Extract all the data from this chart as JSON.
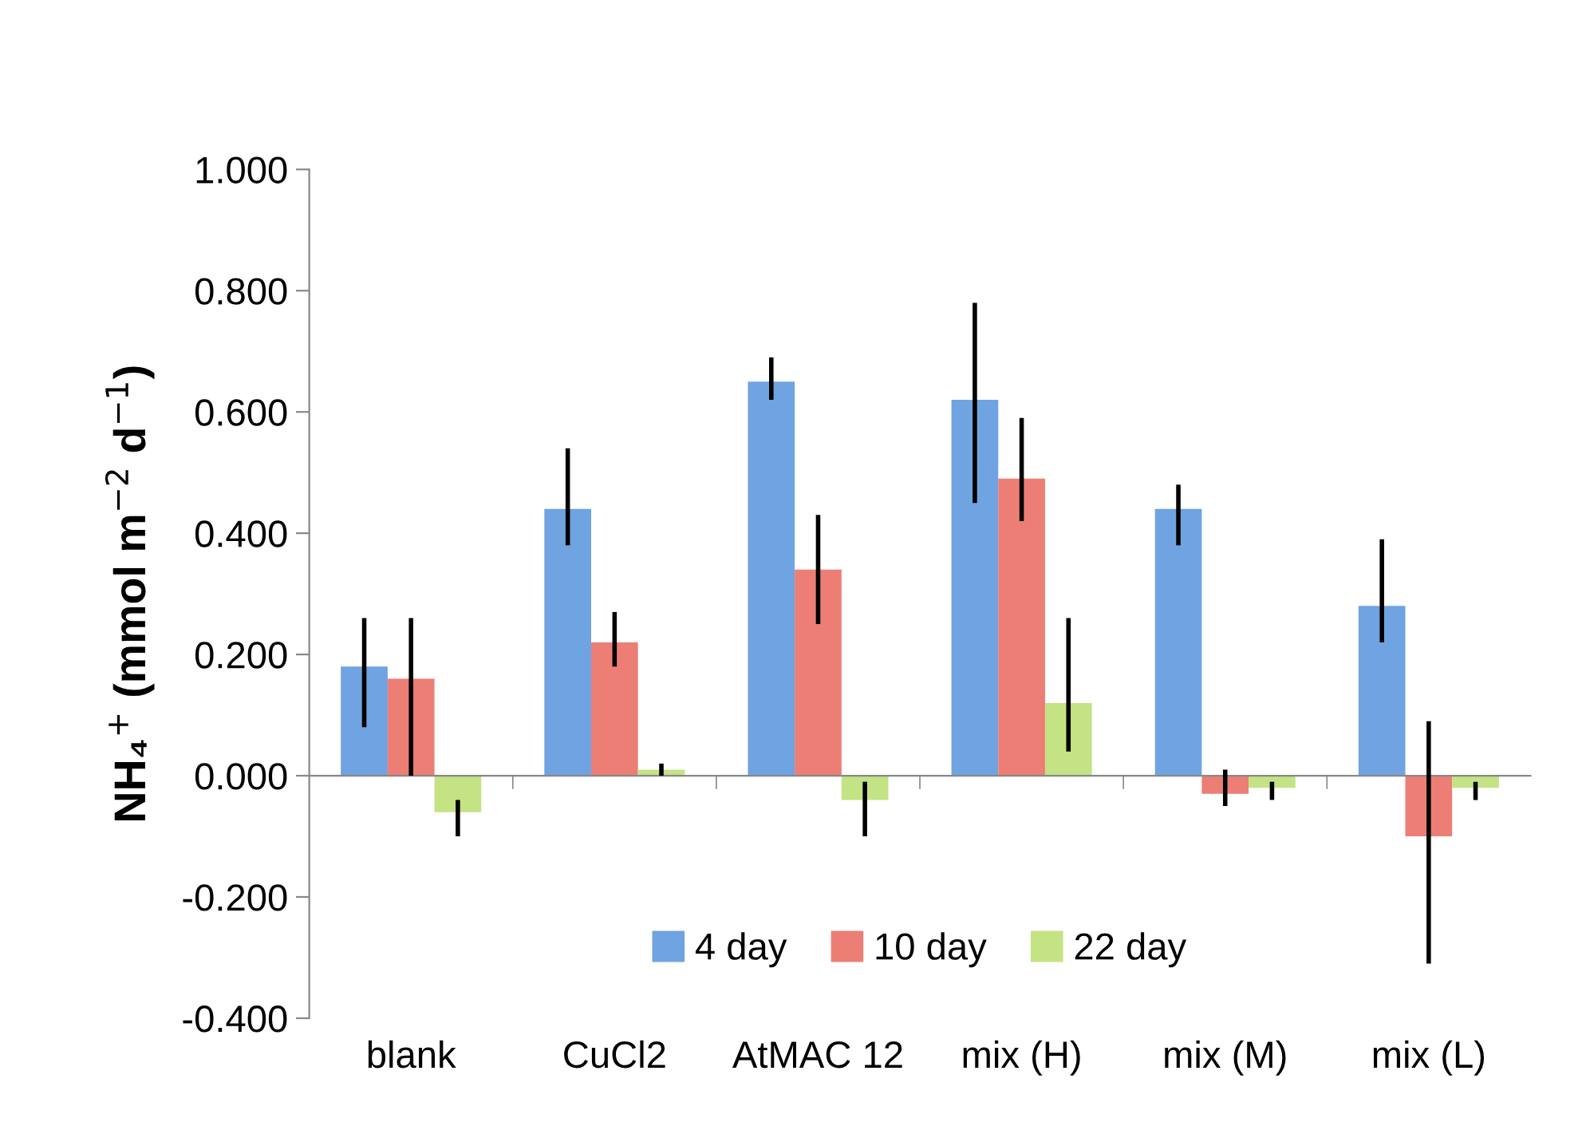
{
  "chart_data": {
    "type": "bar",
    "ylabel": "NH₄$^{+}$ (mmol m$^{−2}$ d$^{−1}$)",
    "categories": [
      "blank",
      "CuCl2",
      "AtMAC 12",
      "mix (H)",
      "mix (M)",
      "mix (L)"
    ],
    "series": [
      {
        "name": "4 day",
        "color": "#6fa3e2",
        "values": [
          0.18,
          0.44,
          0.65,
          0.62,
          0.44,
          0.28
        ],
        "errors": [
          [
            0.08,
            0.26
          ],
          [
            0.38,
            0.54
          ],
          [
            0.62,
            0.69
          ],
          [
            0.45,
            0.78
          ],
          [
            0.38,
            0.48
          ],
          [
            0.22,
            0.39
          ]
        ]
      },
      {
        "name": "10 day",
        "color": "#ec7e76",
        "values": [
          0.16,
          0.22,
          0.34,
          0.49,
          -0.03,
          -0.1
        ],
        "errors": [
          [
            0.0,
            0.26
          ],
          [
            0.18,
            0.27
          ],
          [
            0.25,
            0.43
          ],
          [
            0.42,
            0.59
          ],
          [
            -0.05,
            0.01
          ],
          [
            -0.31,
            0.09
          ]
        ]
      },
      {
        "name": "22 day",
        "color": "#c4e384",
        "values": [
          -0.06,
          0.01,
          -0.04,
          0.12,
          -0.02,
          -0.02
        ],
        "errors": [
          [
            -0.1,
            -0.04
          ],
          [
            0.0,
            0.02
          ],
          [
            -0.1,
            -0.01
          ],
          [
            0.04,
            0.26
          ],
          [
            -0.04,
            -0.01
          ],
          [
            -0.04,
            -0.01
          ]
        ]
      }
    ],
    "ylim": [
      -0.4,
      1.0
    ],
    "yticks": [
      {
        "value": -0.4,
        "label": "-0.400"
      },
      {
        "value": -0.2,
        "label": "-0.200"
      },
      {
        "value": 0,
        "label": "0.000"
      },
      {
        "value": 0.2,
        "label": "0.200"
      },
      {
        "value": 0.4,
        "label": "0.400"
      },
      {
        "value": 0.6,
        "label": "0.600"
      },
      {
        "value": 0.8,
        "label": "0.800"
      },
      {
        "value": 1.0,
        "label": "1.000"
      }
    ],
    "legend": "bottom"
  }
}
